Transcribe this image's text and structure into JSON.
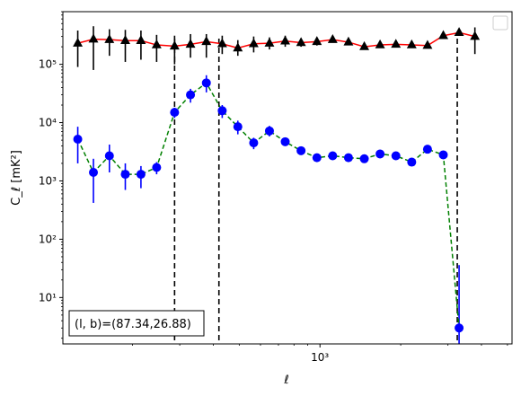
{
  "chart_data": {
    "type": "scatter",
    "title": "",
    "xlabel": "ℓ",
    "ylabel": "C_ℓ  [mK²]",
    "xscale": "log",
    "yscale": "log",
    "xlim": [
      110,
      5200
    ],
    "ylim": [
      1.6,
      800000
    ],
    "x_tick_labels": [
      {
        "value": 1000,
        "label": "10³"
      }
    ],
    "y_tick_labels": [
      {
        "value": 10,
        "label": "10¹"
      },
      {
        "value": 100,
        "label": "10²"
      },
      {
        "value": 1000,
        "label": "10³"
      },
      {
        "value": 10000,
        "label": "10⁴"
      },
      {
        "value": 100000,
        "label": "10⁵"
      }
    ],
    "grid": false,
    "legend": "top-right, empty",
    "annotation": "(l, b)=(87.34,26.88)",
    "vlines": [
      287,
      420,
      3250
    ],
    "series": [
      {
        "marker": "triangle",
        "marker_color": "#000000",
        "line_color": "#ff0000",
        "line_style": "solid",
        "points": [
          {
            "x": 125,
            "y": 230000,
            "lo": 90000,
            "hi": 380000
          },
          {
            "x": 143,
            "y": 270000,
            "lo": 80000,
            "hi": 450000
          },
          {
            "x": 164,
            "y": 265000,
            "lo": 140000,
            "hi": 400000
          },
          {
            "x": 188,
            "y": 255000,
            "lo": 110000,
            "hi": 390000
          },
          {
            "x": 215,
            "y": 255000,
            "lo": 120000,
            "hi": 380000
          },
          {
            "x": 246,
            "y": 215000,
            "lo": 110000,
            "hi": 320000
          },
          {
            "x": 287,
            "y": 205000,
            "lo": 100000,
            "hi": 310000
          },
          {
            "x": 329,
            "y": 220000,
            "lo": 130000,
            "hi": 330000
          },
          {
            "x": 377,
            "y": 245000,
            "lo": 130000,
            "hi": 330000
          },
          {
            "x": 432,
            "y": 225000,
            "lo": 150000,
            "hi": 310000
          },
          {
            "x": 494,
            "y": 190000,
            "lo": 140000,
            "hi": 260000
          },
          {
            "x": 566,
            "y": 225000,
            "lo": 160000,
            "hi": 300000
          },
          {
            "x": 648,
            "y": 230000,
            "lo": 180000,
            "hi": 290000
          },
          {
            "x": 742,
            "y": 250000,
            "lo": 200000,
            "hi": 310000
          },
          {
            "x": 850,
            "y": 235000,
            "lo": 200000,
            "hi": 280000
          },
          {
            "x": 974,
            "y": 245000,
            "lo": 210000,
            "hi": 285000
          },
          {
            "x": 1115,
            "y": 265000,
            "lo": 240000,
            "hi": 300000
          },
          {
            "x": 1277,
            "y": 240000,
            "lo": 220000,
            "hi": 270000
          },
          {
            "x": 1463,
            "y": 200000,
            "lo": 185000,
            "hi": 215000
          },
          {
            "x": 1675,
            "y": 215000,
            "lo": 200000,
            "hi": 230000
          },
          {
            "x": 1919,
            "y": 220000,
            "lo": 205000,
            "hi": 235000
          },
          {
            "x": 2198,
            "y": 215000,
            "lo": 200000,
            "hi": 230000
          },
          {
            "x": 2517,
            "y": 210000,
            "lo": 195000,
            "hi": 225000
          },
          {
            "x": 2883,
            "y": 310000,
            "lo": 290000,
            "hi": 330000
          },
          {
            "x": 3301,
            "y": 350000,
            "lo": 320000,
            "hi": 380000
          },
          {
            "x": 3781,
            "y": 300000,
            "lo": 150000,
            "hi": 430000
          }
        ]
      },
      {
        "marker": "circle",
        "marker_color": "#0000ff",
        "line_color": "#008000",
        "line_style": "dashed",
        "points": [
          {
            "x": 125,
            "y": 5200,
            "lo": 2000,
            "hi": 8500
          },
          {
            "x": 143,
            "y": 1400,
            "lo": 420,
            "hi": 2400
          },
          {
            "x": 164,
            "y": 2700,
            "lo": 1400,
            "hi": 4200
          },
          {
            "x": 188,
            "y": 1300,
            "lo": 700,
            "hi": 2000
          },
          {
            "x": 215,
            "y": 1300,
            "lo": 750,
            "hi": 1800
          },
          {
            "x": 246,
            "y": 1700,
            "lo": 1300,
            "hi": 2100
          },
          {
            "x": 287,
            "y": 15000,
            "lo": 12000,
            "hi": 18000
          },
          {
            "x": 329,
            "y": 30000,
            "lo": 22000,
            "hi": 38000
          },
          {
            "x": 377,
            "y": 48000,
            "lo": 33000,
            "hi": 65000
          },
          {
            "x": 432,
            "y": 16000,
            "lo": 12000,
            "hi": 20000
          },
          {
            "x": 494,
            "y": 8500,
            "lo": 6300,
            "hi": 10800
          },
          {
            "x": 566,
            "y": 4500,
            "lo": 3500,
            "hi": 5500
          },
          {
            "x": 648,
            "y": 7200,
            "lo": 5800,
            "hi": 8800
          },
          {
            "x": 742,
            "y": 4700,
            "lo": 4000,
            "hi": 5400
          },
          {
            "x": 850,
            "y": 3300,
            "lo": 2900,
            "hi": 3700
          },
          {
            "x": 974,
            "y": 2500,
            "lo": 2300,
            "hi": 2700
          },
          {
            "x": 1115,
            "y": 2700,
            "lo": 2500,
            "hi": 2900
          },
          {
            "x": 1277,
            "y": 2500,
            "lo": 2350,
            "hi": 2650
          },
          {
            "x": 1463,
            "y": 2400,
            "lo": 2250,
            "hi": 2550
          },
          {
            "x": 1675,
            "y": 2900,
            "lo": 2750,
            "hi": 3050
          },
          {
            "x": 1919,
            "y": 2700,
            "lo": 2550,
            "hi": 2850
          },
          {
            "x": 2198,
            "y": 2100,
            "lo": 1950,
            "hi": 2250
          },
          {
            "x": 2517,
            "y": 3500,
            "lo": 3300,
            "hi": 3700
          },
          {
            "x": 2883,
            "y": 2800,
            "lo": 2600,
            "hi": 3000
          },
          {
            "x": 3301,
            "y": 3,
            "lo": 1.6,
            "hi": 36
          }
        ]
      }
    ]
  }
}
